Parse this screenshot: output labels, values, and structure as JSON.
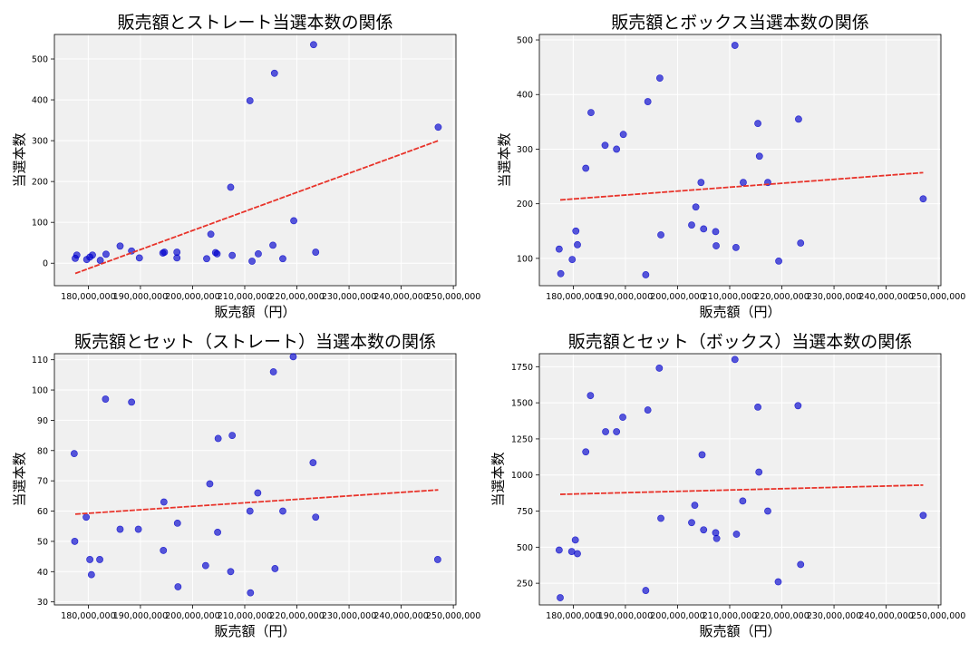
{
  "chart_data": [
    {
      "type": "scatter",
      "title": "販売額とストレート当選本数の関係",
      "xlabel": "販売額（円）",
      "ylabel": "当選本数",
      "xlim": [
        173500000,
        250500000
      ],
      "ylim": [
        -55,
        560
      ],
      "xticks": [
        180000000,
        190000000,
        200000000,
        210000000,
        220000000,
        230000000,
        240000000,
        250000000
      ],
      "xtick_labels": [
        "180,000,000",
        "190,000,000",
        "200,000,000",
        "210,000,000",
        "220,000,000",
        "230,000,000",
        "240,000,000",
        "250,000,000"
      ],
      "yticks": [
        0,
        100,
        200,
        300,
        400,
        500
      ],
      "ytick_labels": [
        "0",
        "100",
        "200",
        "300",
        "400",
        "500"
      ],
      "grid": true,
      "points": [
        [
          177500000,
          12
        ],
        [
          177800000,
          20
        ],
        [
          179700000,
          9
        ],
        [
          180300000,
          15
        ],
        [
          180800000,
          20
        ],
        [
          182300000,
          7
        ],
        [
          183400000,
          22
        ],
        [
          186100000,
          42
        ],
        [
          188300000,
          30
        ],
        [
          189800000,
          13
        ],
        [
          194300000,
          25
        ],
        [
          194600000,
          27
        ],
        [
          197000000,
          27
        ],
        [
          197000000,
          13
        ],
        [
          202700000,
          11
        ],
        [
          203500000,
          71
        ],
        [
          204400000,
          26
        ],
        [
          204700000,
          23
        ],
        [
          207300000,
          186
        ],
        [
          207600000,
          19
        ],
        [
          211000000,
          398
        ],
        [
          211400000,
          5
        ],
        [
          212600000,
          23
        ],
        [
          215400000,
          44
        ],
        [
          215700000,
          465
        ],
        [
          217300000,
          11
        ],
        [
          219400000,
          104
        ],
        [
          223200000,
          535
        ],
        [
          223600000,
          27
        ],
        [
          247100000,
          333
        ]
      ],
      "trend": [
        [
          177500000,
          -25
        ],
        [
          247100000,
          300
        ]
      ],
      "point_color": "#0000cc",
      "trend_color": "#e8332a"
    },
    {
      "type": "scatter",
      "title": "販売額とボックス当選本数の関係",
      "xlabel": "販売額（円）",
      "ylabel": "当選本数",
      "xlim": [
        173500000,
        250500000
      ],
      "ylim": [
        50,
        510
      ],
      "xticks": [
        180000000,
        190000000,
        200000000,
        210000000,
        220000000,
        230000000,
        240000000,
        250000000
      ],
      "xtick_labels": [
        "180,000,000",
        "190,000,000",
        "200,000,000",
        "210,000,000",
        "220,000,000",
        "230,000,000",
        "240,000,000",
        "250,000,000"
      ],
      "yticks": [
        100,
        200,
        300,
        400,
        500
      ],
      "ytick_labels": [
        "100",
        "200",
        "300",
        "400",
        "500"
      ],
      "grid": true,
      "points": [
        [
          177300000,
          117
        ],
        [
          177600000,
          72
        ],
        [
          179800000,
          98
        ],
        [
          180500000,
          150
        ],
        [
          180800000,
          125
        ],
        [
          182400000,
          265
        ],
        [
          183400000,
          367
        ],
        [
          186100000,
          307
        ],
        [
          188300000,
          300
        ],
        [
          189600000,
          327
        ],
        [
          193900000,
          70
        ],
        [
          194300000,
          387
        ],
        [
          196600000,
          430
        ],
        [
          196800000,
          143
        ],
        [
          202700000,
          161
        ],
        [
          203500000,
          194
        ],
        [
          204500000,
          239
        ],
        [
          205000000,
          154
        ],
        [
          207300000,
          149
        ],
        [
          207400000,
          123
        ],
        [
          211000000,
          490
        ],
        [
          211200000,
          120
        ],
        [
          212600000,
          239
        ],
        [
          215400000,
          347
        ],
        [
          215700000,
          287
        ],
        [
          217300000,
          239
        ],
        [
          219400000,
          95
        ],
        [
          223200000,
          355
        ],
        [
          223600000,
          128
        ],
        [
          247100000,
          209
        ]
      ],
      "trend": [
        [
          177500000,
          207
        ],
        [
          247100000,
          257
        ]
      ],
      "point_color": "#0000cc",
      "trend_color": "#e8332a"
    },
    {
      "type": "scatter",
      "title": "販売額とセット（ストレート）当選本数の関係",
      "xlabel": "販売額（円）",
      "ylabel": "当選本数",
      "xlim": [
        173500000,
        250500000
      ],
      "ylim": [
        29,
        112
      ],
      "xticks": [
        180000000,
        190000000,
        200000000,
        210000000,
        220000000,
        230000000,
        240000000,
        250000000
      ],
      "xtick_labels": [
        "180,000,000",
        "190,000,000",
        "200,000,000",
        "210,000,000",
        "220,000,000",
        "230,000,000",
        "240,000,000",
        "250,000,000"
      ],
      "yticks": [
        30,
        40,
        50,
        60,
        70,
        80,
        90,
        100,
        110
      ],
      "ytick_labels": [
        "30",
        "40",
        "50",
        "60",
        "70",
        "80",
        "90",
        "100",
        "110"
      ],
      "grid": true,
      "points": [
        [
          177300000,
          79
        ],
        [
          177400000,
          50
        ],
        [
          179600000,
          58
        ],
        [
          180300000,
          44
        ],
        [
          180600000,
          39
        ],
        [
          182200000,
          44
        ],
        [
          183300000,
          97
        ],
        [
          186100000,
          54
        ],
        [
          188300000,
          96
        ],
        [
          189600000,
          54
        ],
        [
          194400000,
          47
        ],
        [
          194500000,
          63
        ],
        [
          197100000,
          56
        ],
        [
          197200000,
          35
        ],
        [
          202500000,
          42
        ],
        [
          203300000,
          69
        ],
        [
          204800000,
          53
        ],
        [
          204900000,
          84
        ],
        [
          207300000,
          40
        ],
        [
          207600000,
          85
        ],
        [
          211000000,
          60
        ],
        [
          211100000,
          33
        ],
        [
          212500000,
          66
        ],
        [
          215500000,
          106
        ],
        [
          215800000,
          41
        ],
        [
          217300000,
          60
        ],
        [
          219300000,
          111
        ],
        [
          223100000,
          76
        ],
        [
          223600000,
          58
        ],
        [
          247000000,
          44
        ]
      ],
      "trend": [
        [
          177500000,
          59
        ],
        [
          247100000,
          67
        ]
      ],
      "point_color": "#0000cc",
      "trend_color": "#e8332a"
    },
    {
      "type": "scatter",
      "title": "販売額とセット（ボックス）当選本数の関係",
      "xlabel": "販売額（円）",
      "ylabel": "当選本数",
      "xlim": [
        173500000,
        250500000
      ],
      "ylim": [
        100,
        1840
      ],
      "xticks": [
        180000000,
        190000000,
        200000000,
        210000000,
        220000000,
        230000000,
        240000000,
        250000000
      ],
      "xtick_labels": [
        "180,000,000",
        "190,000,000",
        "200,000,000",
        "210,000,000",
        "220,000,000",
        "230,000,000",
        "240,000,000",
        "250,000,000"
      ],
      "yticks": [
        250,
        500,
        750,
        1000,
        1250,
        1500,
        1750
      ],
      "ytick_labels": [
        "250",
        "500",
        "750",
        "1000",
        "1250",
        "1500",
        "1750"
      ],
      "grid": true,
      "points": [
        [
          177300000,
          480
        ],
        [
          177500000,
          150
        ],
        [
          179700000,
          470
        ],
        [
          180400000,
          550
        ],
        [
          180800000,
          455
        ],
        [
          182400000,
          1160
        ],
        [
          183300000,
          1550
        ],
        [
          186200000,
          1300
        ],
        [
          188300000,
          1300
        ],
        [
          189500000,
          1400
        ],
        [
          193900000,
          200
        ],
        [
          194300000,
          1450
        ],
        [
          196500000,
          1740
        ],
        [
          196800000,
          700
        ],
        [
          202700000,
          670
        ],
        [
          203300000,
          790
        ],
        [
          204700000,
          1140
        ],
        [
          205000000,
          620
        ],
        [
          207300000,
          600
        ],
        [
          207500000,
          560
        ],
        [
          211000000,
          1800
        ],
        [
          211300000,
          590
        ],
        [
          212500000,
          820
        ],
        [
          215400000,
          1470
        ],
        [
          215600000,
          1020
        ],
        [
          217300000,
          750
        ],
        [
          219300000,
          260
        ],
        [
          223100000,
          1480
        ],
        [
          223600000,
          380
        ],
        [
          247100000,
          720
        ]
      ],
      "trend": [
        [
          177500000,
          866
        ],
        [
          247100000,
          930
        ]
      ],
      "point_color": "#0000cc",
      "trend_color": "#e8332a"
    }
  ]
}
